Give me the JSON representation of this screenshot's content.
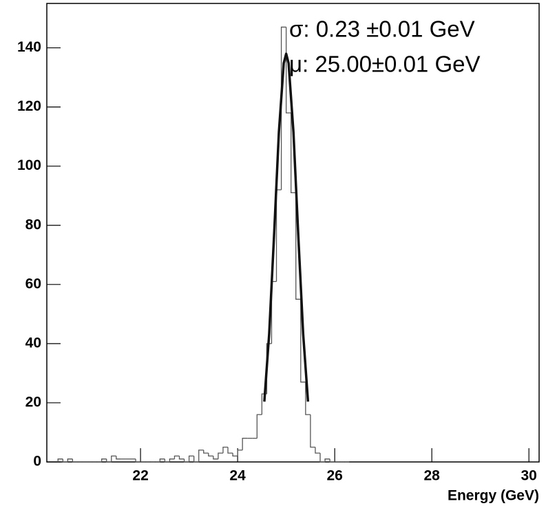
{
  "chart_data": {
    "type": "histogram",
    "xlabel": "Energy  (GeV)",
    "annotations": [
      "σ: 0.23 ±0.01 GeV",
      "μ: 25.00±0.01 GeV"
    ],
    "bins": [
      20.3,
      20.4,
      20.5,
      20.6,
      20.7,
      20.8,
      20.9,
      21.0,
      21.1,
      21.2,
      21.3,
      21.4,
      21.5,
      21.6,
      21.7,
      21.8,
      21.9,
      22.0,
      22.1,
      22.2,
      22.3,
      22.4,
      22.5,
      22.6,
      22.7,
      22.8,
      22.9,
      23.0,
      23.1,
      23.2,
      23.3,
      23.4,
      23.5,
      23.6,
      23.7,
      23.8,
      23.9,
      24.0,
      24.1,
      24.2,
      24.3,
      24.4,
      24.5,
      24.6,
      24.7,
      24.8,
      24.9,
      25.0,
      25.1,
      25.2,
      25.3,
      25.4,
      25.5,
      25.6,
      25.7,
      25.8,
      25.9,
      26.0,
      26.1,
      26.2,
      26.3
    ],
    "counts": [
      1,
      0,
      1,
      0,
      0,
      0,
      0,
      0,
      0,
      1,
      0,
      2,
      1,
      1,
      1,
      1,
      0,
      0,
      0,
      0,
      0,
      1,
      0,
      1,
      2,
      1,
      0,
      2,
      0,
      4,
      3,
      2,
      1,
      3,
      5,
      3,
      2,
      4,
      8,
      8,
      8,
      16,
      23,
      40,
      61,
      92,
      147,
      118,
      91,
      55,
      27,
      16,
      5,
      3,
      0,
      1,
      0,
      0,
      0,
      0
    ],
    "color": "#555555",
    "fit": {
      "color": "#111111",
      "x": [
        24.55,
        24.65,
        24.75,
        24.85,
        24.95,
        25.0,
        25.05,
        25.15,
        25.25,
        25.35,
        25.45
      ],
      "y": [
        20.4,
        43.3,
        76.4,
        111.5,
        134.8,
        138,
        134.8,
        111.5,
        76.4,
        43.3,
        20.4
      ]
    },
    "xlim": [
      20.07,
      30.21
    ],
    "ylim": [
      0,
      155
    ],
    "xticks": [
      22,
      24,
      26,
      28,
      30
    ],
    "yticks": [
      0,
      20,
      40,
      60,
      80,
      100,
      120,
      140
    ]
  }
}
